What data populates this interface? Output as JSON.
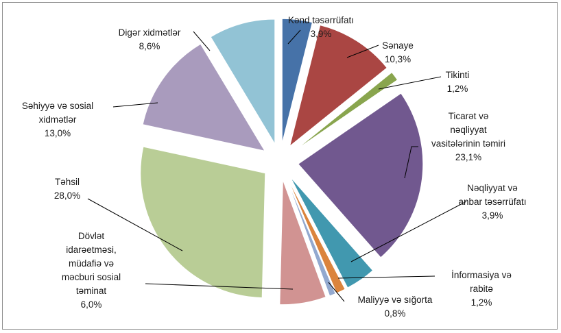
{
  "chart_data": {
    "type": "pie",
    "title": "",
    "slices": [
      {
        "label": [
          "Kənd təsərrüfatı"
        ],
        "value": 3.9,
        "value_text": "3,9%",
        "color": "#4672a8"
      },
      {
        "label": [
          "Sənaye"
        ],
        "value": 10.3,
        "value_text": "10,3%",
        "color": "#aa4643"
      },
      {
        "label": [
          "Tikinti"
        ],
        "value": 1.2,
        "value_text": "1,2%",
        "color": "#89a54e"
      },
      {
        "label": [
          "Ticarət və",
          "nəqliyyat",
          "vasitələrinin təmiri"
        ],
        "value": 23.1,
        "value_text": "23,1%",
        "color": "#71588f"
      },
      {
        "label": [
          "Nəqliyyat və",
          "anbar təsərrüfatı"
        ],
        "value": 3.9,
        "value_text": "3,9%",
        "color": "#4198af"
      },
      {
        "label": [
          "İnformasiya və",
          "rabitə"
        ],
        "value": 1.2,
        "value_text": "1,2%",
        "color": "#db843d"
      },
      {
        "label": [
          "Maliyyə və sığorta"
        ],
        "value": 0.8,
        "value_text": "0,8%",
        "color": "#93a9cf"
      },
      {
        "label": [
          "Dövlət",
          "idarəetməsi,",
          "müdafiə və",
          "məcburi sosial",
          "təminat"
        ],
        "value": 6.0,
        "value_text": "6,0%",
        "color": "#d19392"
      },
      {
        "label": [
          "Təhsil"
        ],
        "value": 28.0,
        "value_text": "28,0%",
        "color": "#b9cd96"
      },
      {
        "label": [
          "Səhiyyə və sosial",
          "xidmətlər"
        ],
        "value": 13.0,
        "value_text": "13,0%",
        "color": "#a99bbd"
      },
      {
        "label": [
          "Digər xidmətlər"
        ],
        "value": 8.6,
        "value_text": "8,6%",
        "color": "#92c3d5"
      }
    ]
  }
}
